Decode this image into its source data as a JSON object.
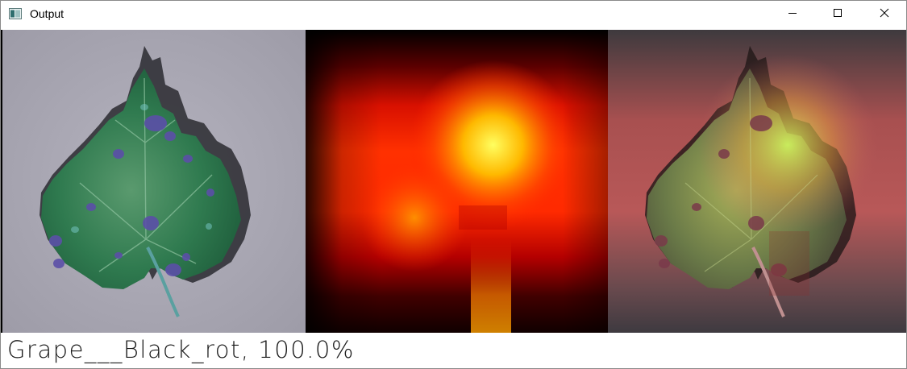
{
  "window": {
    "title": "Output",
    "app_icon": "opencv-window-icon",
    "controls": {
      "minimize_icon": "minimize-icon",
      "maximize_icon": "maximize-icon",
      "close_icon": "close-icon"
    }
  },
  "panels": [
    {
      "name": "original-leaf-image",
      "kind": "photo"
    },
    {
      "name": "gradcam-heatmap",
      "kind": "heatmap"
    },
    {
      "name": "heatmap-overlay-image",
      "kind": "overlay"
    }
  ],
  "prediction": {
    "text": "Grape___Black_rot, 100.0%"
  },
  "colors": {
    "leaf": "#2f7a4f",
    "background_gray": "#a9a7b3",
    "heatmap_hot": "#ffff40",
    "heatmap_mid": "#ff2000",
    "heatmap_cold": "#000000"
  }
}
